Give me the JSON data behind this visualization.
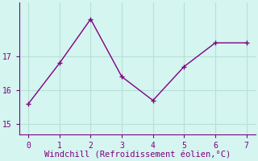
{
  "x": [
    0,
    1,
    2,
    3,
    4,
    5,
    6,
    7
  ],
  "y": [
    15.6,
    16.8,
    18.1,
    16.4,
    15.7,
    16.7,
    17.4,
    17.4
  ],
  "line_color": "#800080",
  "marker": "+",
  "marker_size": 4,
  "linewidth": 1.0,
  "background_color": "#d4f5f0",
  "grid_color": "#b8e0d8",
  "xlabel": "Windchill (Refroidissement éolien,°C)",
  "xlabel_color": "#800080",
  "xlabel_fontsize": 7.5,
  "tick_color": "#800080",
  "tick_fontsize": 7,
  "yticks": [
    15,
    16,
    17
  ],
  "xticks": [
    0,
    1,
    2,
    3,
    4,
    5,
    6,
    7
  ],
  "ylim": [
    14.7,
    18.6
  ],
  "xlim": [
    -0.3,
    7.3
  ]
}
